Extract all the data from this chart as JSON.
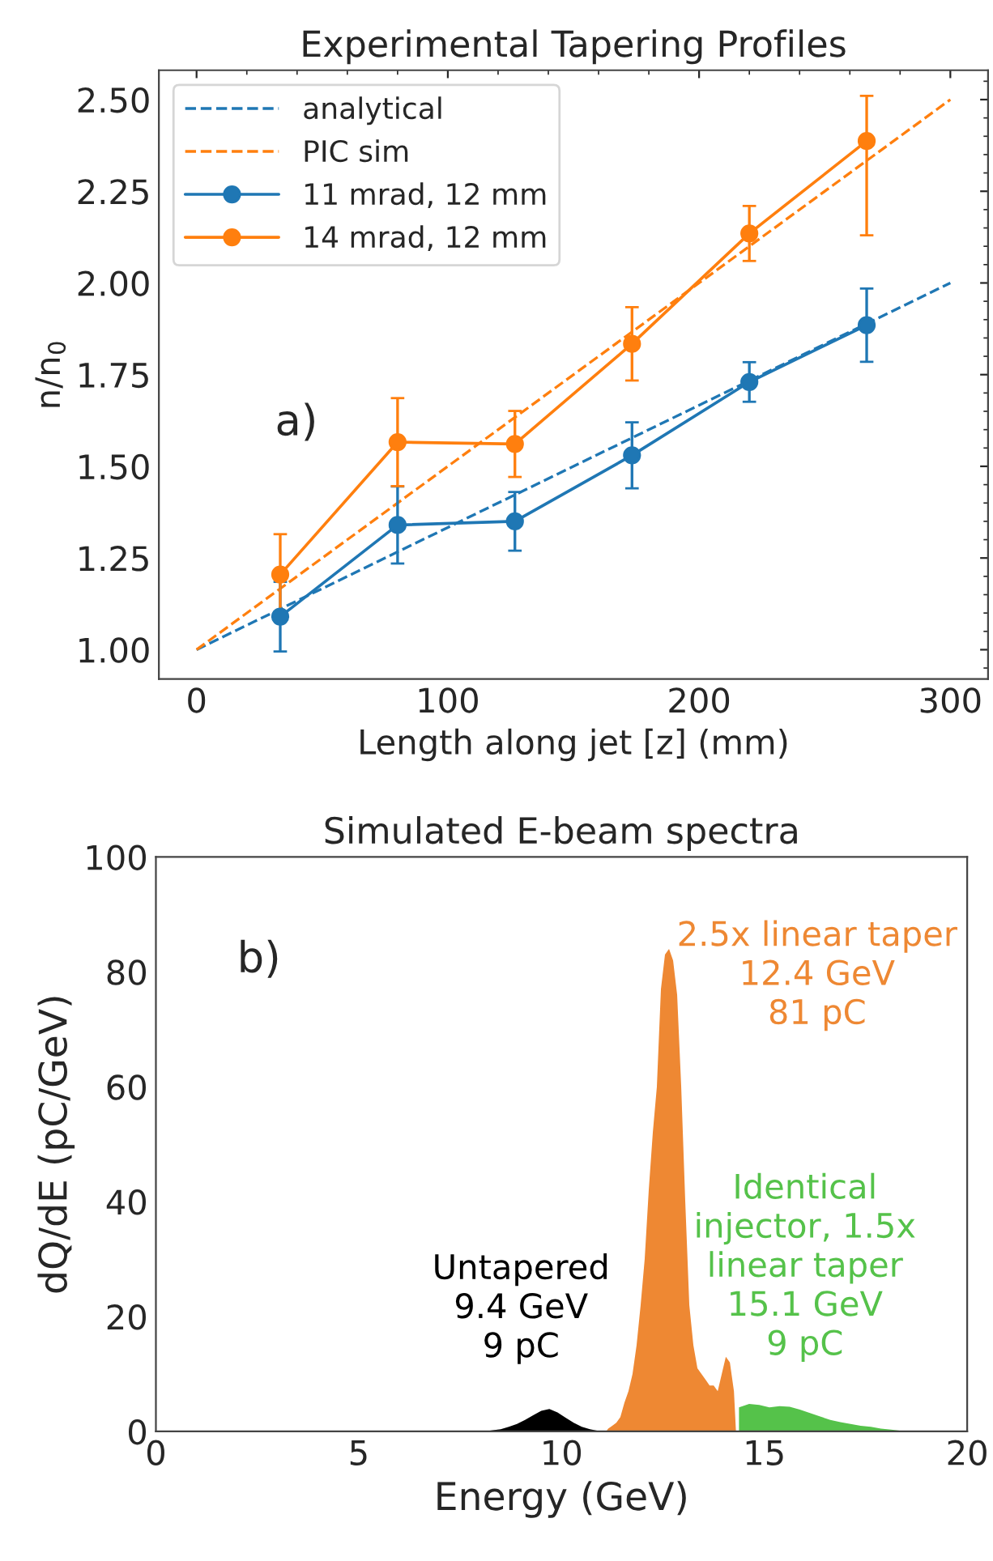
{
  "chart_data": [
    {
      "type": "line",
      "title": "Experimental Tapering Profiles",
      "xlabel": "Length along jet [z] (mm)",
      "ylabel": "n/n$_{0}$",
      "x": [
        33.3,
        80,
        126.7,
        173.3,
        220,
        266.7
      ],
      "series": [
        {
          "name": "analytical",
          "color": "#1f77b4",
          "x": [
            0,
            300
          ],
          "values": [
            1.0,
            2.0
          ],
          "line_style": "dashed",
          "marker": "none"
        },
        {
          "name": "PIC sim",
          "color": "#ff7f0e",
          "x": [
            0,
            300
          ],
          "values": [
            1.0,
            2.5
          ],
          "line_style": "dashed",
          "marker": "none"
        },
        {
          "name": "11 mrad, 12 mm",
          "color": "#1f77b4",
          "values": [
            1.09,
            1.34,
            1.35,
            1.53,
            1.73,
            1.885
          ],
          "errors": [
            0.095,
            0.105,
            0.08,
            0.09,
            0.054,
            0.1
          ],
          "line_style": "solid",
          "marker": "circle"
        },
        {
          "name": "14 mrad, 12 mm",
          "color": "#ff7f0e",
          "values": [
            1.205,
            1.566,
            1.561,
            1.834,
            2.135,
            2.387
          ],
          "errors": [
            0.11,
            0.12,
            0.09,
            0.1,
            0.075,
            [
              2.13,
              2.51
            ]
          ],
          "line_style": "solid",
          "marker": "circle"
        }
      ],
      "xlim": [
        -15,
        315
      ],
      "ylim": [
        0.92,
        2.58
      ],
      "xticks": [
        0,
        100,
        200,
        300
      ],
      "yticks": [
        {
          "value": 1.0,
          "label": "1.00"
        },
        {
          "value": 1.25,
          "label": "1.25"
        },
        {
          "value": 1.5,
          "label": "1.50"
        },
        {
          "value": 1.75,
          "label": "1.75"
        },
        {
          "value": 2.0,
          "label": "2.00"
        },
        {
          "value": 2.25,
          "label": "2.25"
        },
        {
          "value": 2.5,
          "label": "2.50"
        }
      ],
      "legend": "top left",
      "grid": false,
      "annotations": [
        "a)"
      ]
    },
    {
      "type": "area",
      "title": "Simulated E-beam spectra",
      "xlabel": "Energy (GeV)",
      "ylabel": "dQ/dE (pC/GeV)",
      "series": [
        {
          "name": "Untapered\n9.4 GeV\n9 pC",
          "color": "#000000",
          "x": [
            8.1,
            8.3,
            8.5,
            8.7,
            8.9,
            9.1,
            9.3,
            9.5,
            9.7,
            9.9,
            10.1,
            10.3,
            10.5,
            10.7,
            10.9,
            11.1
          ],
          "values": [
            0,
            0.2,
            0.4,
            0.8,
            1.3,
            2.0,
            2.8,
            3.6,
            3.9,
            3.3,
            2.4,
            1.5,
            0.8,
            0.4,
            0.1,
            0
          ]
        },
        {
          "name": "Identical\ninjector, 1.5x\nlinear taper\n15.1 GeV\n9 pC",
          "color": "#55c24a",
          "x": [
            14.375,
            14.625,
            14.875,
            15.125,
            15.375,
            15.625,
            15.875,
            16.125,
            16.375,
            16.625,
            16.875,
            17.125,
            17.375,
            17.625,
            17.875,
            18.125,
            18.375,
            18.5
          ],
          "values": [
            4.2,
            4.8,
            4.6,
            4.2,
            4.4,
            4.3,
            3.8,
            3.2,
            2.6,
            2.0,
            1.6,
            1.3,
            1.0,
            0.8,
            0.5,
            0.3,
            0.1,
            0
          ]
        },
        {
          "name": "2.5x linear taper\n12.4 GeV\n81 pC",
          "color": "#ee8833",
          "x": [
            11.1,
            11.15,
            11.25,
            11.35,
            11.45,
            11.55,
            11.65,
            11.75,
            11.85,
            11.95,
            12.05,
            12.15,
            12.25,
            12.35,
            12.45,
            12.55,
            12.65,
            12.75,
            12.85,
            12.95,
            13.05,
            13.15,
            13.25,
            13.35,
            13.45,
            13.55,
            13.65,
            13.75,
            13.85,
            13.95,
            14.05,
            14.15,
            14.25,
            14.3
          ],
          "values": [
            0,
            0.5,
            1,
            1.5,
            2.5,
            5,
            7,
            10,
            15,
            22,
            30,
            42,
            52,
            60,
            77,
            83,
            84,
            82,
            76,
            60,
            40,
            22,
            15,
            11,
            10,
            9,
            8,
            8,
            7,
            10,
            13,
            12,
            7,
            0
          ]
        }
      ],
      "xlim": [
        0,
        20
      ],
      "ylim": [
        0,
        100
      ],
      "xticks": [
        0,
        5,
        10,
        15,
        20
      ],
      "yticks": [
        0,
        20,
        40,
        60,
        80,
        100
      ],
      "grid": false,
      "annotations": [
        "b)"
      ]
    }
  ]
}
